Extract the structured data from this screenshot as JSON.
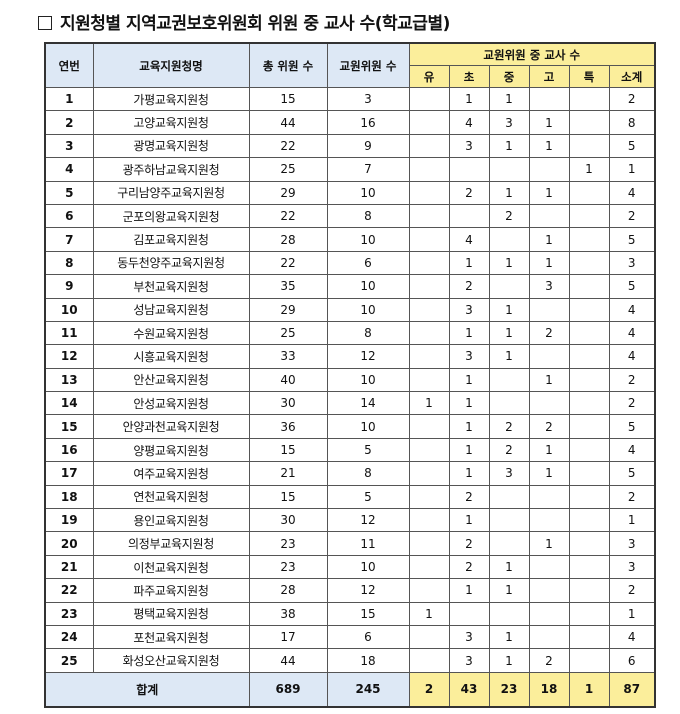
{
  "title": "지원청별 지역교권보호위원회 위원 중 교사 수(학교급별)",
  "headers": {
    "no": "연번",
    "office": "교육지원청명",
    "total_members": "총 위원 수",
    "teacher_members": "교원위원 수",
    "group": "교원위원 중 교사 수",
    "levels": [
      "유",
      "초",
      "중",
      "고",
      "특",
      "소계"
    ]
  },
  "rows": [
    {
      "no": "1",
      "office": "가평교육지원청",
      "total": "15",
      "teacher": "3",
      "levels": [
        "",
        "1",
        "1",
        "",
        "",
        "2"
      ]
    },
    {
      "no": "2",
      "office": "고양교육지원청",
      "total": "44",
      "teacher": "16",
      "levels": [
        "",
        "4",
        "3",
        "1",
        "",
        "8"
      ]
    },
    {
      "no": "3",
      "office": "광명교육지원청",
      "total": "22",
      "teacher": "9",
      "levels": [
        "",
        "3",
        "1",
        "1",
        "",
        "5"
      ]
    },
    {
      "no": "4",
      "office": "광주하남교육지원청",
      "total": "25",
      "teacher": "7",
      "levels": [
        "",
        "",
        "",
        "",
        "1",
        "1"
      ]
    },
    {
      "no": "5",
      "office": "구리남양주교육지원청",
      "total": "29",
      "teacher": "10",
      "levels": [
        "",
        "2",
        "1",
        "1",
        "",
        "4"
      ]
    },
    {
      "no": "6",
      "office": "군포의왕교육지원청",
      "total": "22",
      "teacher": "8",
      "levels": [
        "",
        "",
        "2",
        "",
        "",
        "2"
      ]
    },
    {
      "no": "7",
      "office": "김포교육지원청",
      "total": "28",
      "teacher": "10",
      "levels": [
        "",
        "4",
        "",
        "1",
        "",
        "5"
      ]
    },
    {
      "no": "8",
      "office": "동두천양주교육지원청",
      "total": "22",
      "teacher": "6",
      "levels": [
        "",
        "1",
        "1",
        "1",
        "",
        "3"
      ]
    },
    {
      "no": "9",
      "office": "부천교육지원청",
      "total": "35",
      "teacher": "10",
      "levels": [
        "",
        "2",
        "",
        "3",
        "",
        "5"
      ]
    },
    {
      "no": "10",
      "office": "성남교육지원청",
      "total": "29",
      "teacher": "10",
      "levels": [
        "",
        "3",
        "1",
        "",
        "",
        "4"
      ]
    },
    {
      "no": "11",
      "office": "수원교육지원청",
      "total": "25",
      "teacher": "8",
      "levels": [
        "",
        "1",
        "1",
        "2",
        "",
        "4"
      ]
    },
    {
      "no": "12",
      "office": "시흥교육지원청",
      "total": "33",
      "teacher": "12",
      "levels": [
        "",
        "3",
        "1",
        "",
        "",
        "4"
      ]
    },
    {
      "no": "13",
      "office": "안산교육지원청",
      "total": "40",
      "teacher": "10",
      "levels": [
        "",
        "1",
        "",
        "1",
        "",
        "2"
      ]
    },
    {
      "no": "14",
      "office": "안성교육지원청",
      "total": "30",
      "teacher": "14",
      "levels": [
        "1",
        "1",
        "",
        "",
        "",
        "2"
      ]
    },
    {
      "no": "15",
      "office": "안양과천교육지원청",
      "total": "36",
      "teacher": "10",
      "levels": [
        "",
        "1",
        "2",
        "2",
        "",
        "5"
      ]
    },
    {
      "no": "16",
      "office": "양평교육지원청",
      "total": "15",
      "teacher": "5",
      "levels": [
        "",
        "1",
        "2",
        "1",
        "",
        "4"
      ]
    },
    {
      "no": "17",
      "office": "여주교육지원청",
      "total": "21",
      "teacher": "8",
      "levels": [
        "",
        "1",
        "3",
        "1",
        "",
        "5"
      ]
    },
    {
      "no": "18",
      "office": "연천교육지원청",
      "total": "15",
      "teacher": "5",
      "levels": [
        "",
        "2",
        "",
        "",
        "",
        "2"
      ]
    },
    {
      "no": "19",
      "office": "용인교육지원청",
      "total": "30",
      "teacher": "12",
      "levels": [
        "",
        "1",
        "",
        "",
        "",
        "1"
      ]
    },
    {
      "no": "20",
      "office": "의정부교육지원청",
      "total": "23",
      "teacher": "11",
      "levels": [
        "",
        "2",
        "",
        "1",
        "",
        "3"
      ]
    },
    {
      "no": "21",
      "office": "이천교육지원청",
      "total": "23",
      "teacher": "10",
      "levels": [
        "",
        "2",
        "1",
        "",
        "",
        "3"
      ]
    },
    {
      "no": "22",
      "office": "파주교육지원청",
      "total": "28",
      "teacher": "12",
      "levels": [
        "",
        "1",
        "1",
        "",
        "",
        "2"
      ]
    },
    {
      "no": "23",
      "office": "평택교육지원청",
      "total": "38",
      "teacher": "15",
      "levels": [
        "1",
        "",
        "",
        "",
        "",
        "1"
      ]
    },
    {
      "no": "24",
      "office": "포천교육지원청",
      "total": "17",
      "teacher": "6",
      "levels": [
        "",
        "3",
        "1",
        "",
        "",
        "4"
      ]
    },
    {
      "no": "25",
      "office": "화성오산교육지원청",
      "total": "44",
      "teacher": "18",
      "levels": [
        "",
        "3",
        "1",
        "2",
        "",
        "6"
      ]
    }
  ],
  "footer": {
    "label": "합계",
    "total": "689",
    "teacher": "245",
    "levels": [
      "2",
      "43",
      "23",
      "18",
      "1",
      "87"
    ]
  },
  "colors": {
    "header_blue": "#dde8f5",
    "header_yellow": "#fbee9b"
  }
}
